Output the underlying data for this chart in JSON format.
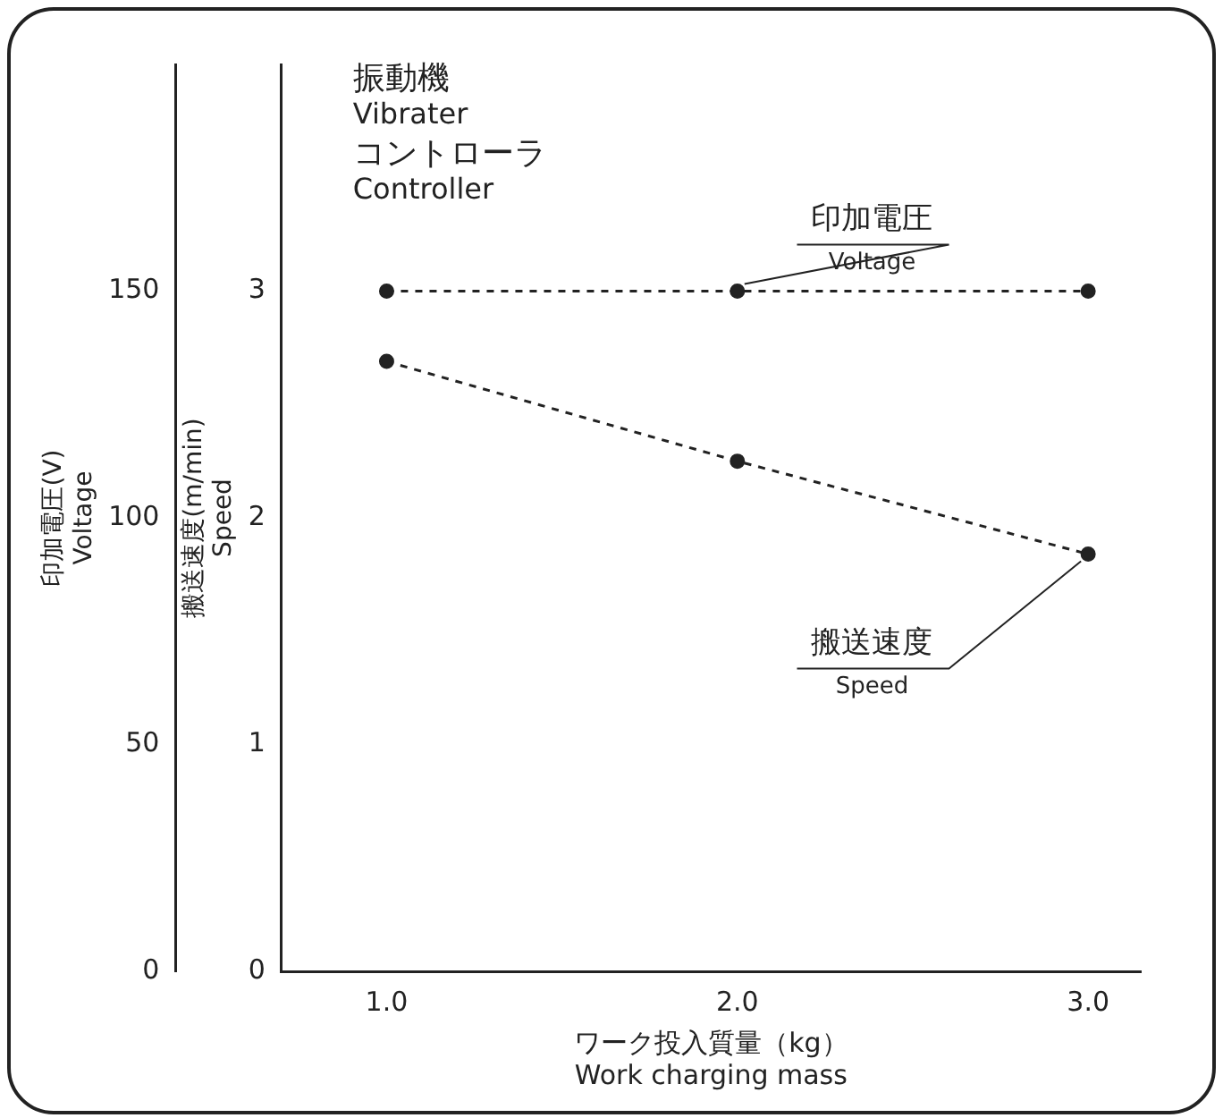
{
  "chart_data": {
    "type": "line",
    "title": "振動機\nVibrater\nコントローラ\nController",
    "xlabel": "ワーク投入質量（kg）\nWork charging mass",
    "ylabel": "印加電圧(V)\nVoltage",
    "y2label": "搬送速度(m/min)\nSpeed",
    "x": [
      1,
      2,
      3
    ],
    "series": [
      {
        "name": "印加電圧\nVoltage",
        "color": "#222222",
        "values": [
          150,
          150,
          150
        ],
        "axis": "y"
      },
      {
        "name": "搬送速度\nSpeed",
        "color": "#222222",
        "values": [
          2.69,
          2.25,
          1.84
        ],
        "axis": "y2"
      }
    ],
    "xlim": [
      0.7,
      3.15
    ],
    "xticks": [
      {
        "value": 1,
        "label": "1.0"
      },
      {
        "value": 2,
        "label": "2.0"
      },
      {
        "value": 3,
        "label": "3.0"
      }
    ],
    "ylim": [
      0,
      200
    ],
    "yticks": [
      0,
      50,
      100,
      150
    ],
    "y2lim": [
      0,
      4
    ],
    "y2ticks": [
      0,
      1,
      2,
      3
    ],
    "grid": false,
    "legend": false,
    "marker": "circle",
    "line_style": "dashed"
  }
}
